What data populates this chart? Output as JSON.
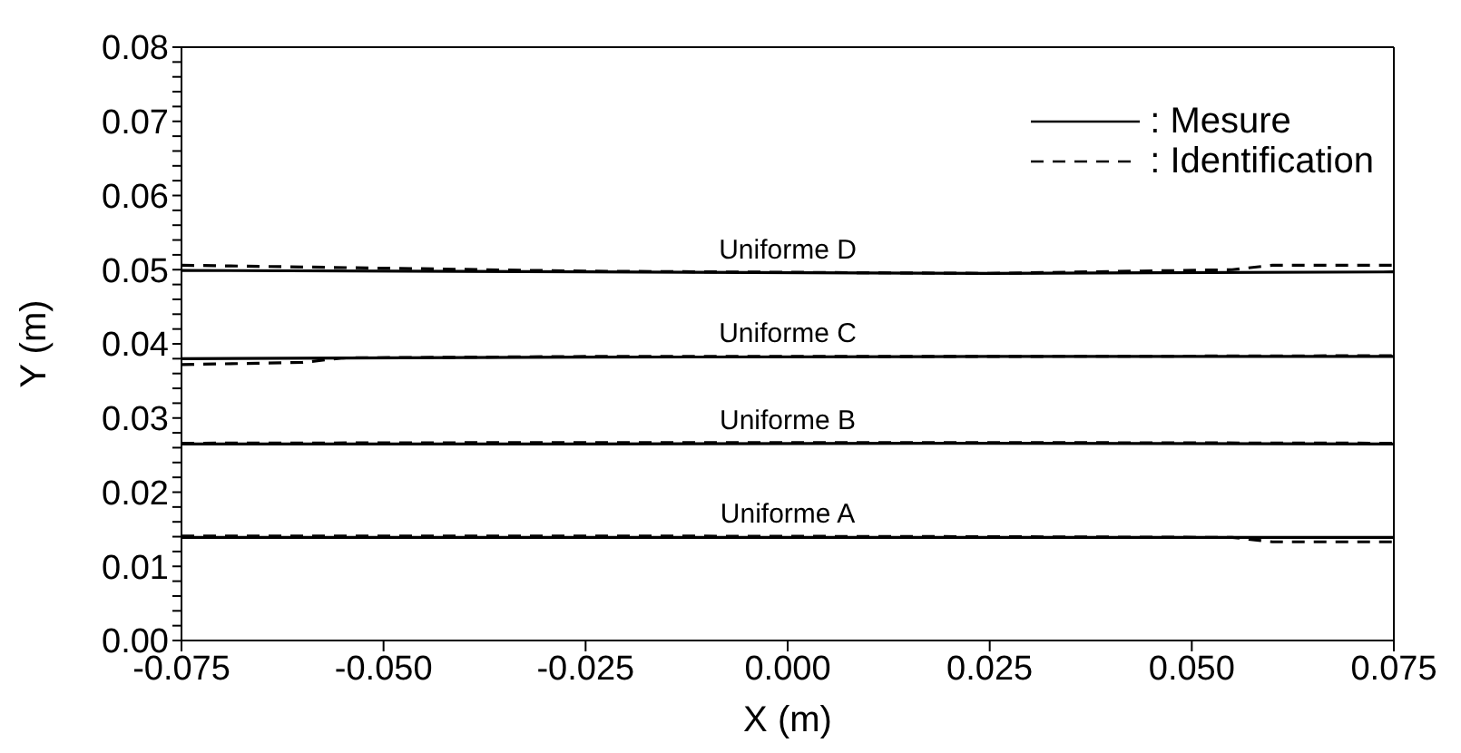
{
  "chart_data": {
    "type": "line",
    "xlabel": "X (m)",
    "ylabel": "Y (m)",
    "xlim": [
      -0.075,
      0.075
    ],
    "xticks": [
      {
        "value": -0.075,
        "label": "-0.075"
      },
      {
        "value": -0.05,
        "label": "-0.050"
      },
      {
        "value": -0.025,
        "label": "-0.025"
      },
      {
        "value": 0,
        "label": "0.000"
      },
      {
        "value": 0.025,
        "label": "0.025"
      },
      {
        "value": 0.05,
        "label": "0.050"
      },
      {
        "value": 0.075,
        "label": "0.075"
      }
    ],
    "ylim": [
      0,
      0.08
    ],
    "yticks": [
      {
        "value": 0,
        "label": "0.00"
      },
      {
        "value": 0.002,
        "label": null
      },
      {
        "value": 0.004,
        "label": null
      },
      {
        "value": 0.006,
        "label": null
      },
      {
        "value": 0.008,
        "label": null
      },
      {
        "value": 0.01,
        "label": "0.01"
      },
      {
        "value": 0.012,
        "label": null
      },
      {
        "value": 0.014,
        "label": null
      },
      {
        "value": 0.016,
        "label": null
      },
      {
        "value": 0.018,
        "label": null
      },
      {
        "value": 0.02,
        "label": "0.02"
      },
      {
        "value": 0.022,
        "label": null
      },
      {
        "value": 0.024,
        "label": null
      },
      {
        "value": 0.026,
        "label": null
      },
      {
        "value": 0.028,
        "label": null
      },
      {
        "value": 0.03,
        "label": "0.03"
      },
      {
        "value": 0.032,
        "label": null
      },
      {
        "value": 0.034,
        "label": null
      },
      {
        "value": 0.036,
        "label": null
      },
      {
        "value": 0.038,
        "label": null
      },
      {
        "value": 0.04,
        "label": "0.04"
      },
      {
        "value": 0.042,
        "label": null
      },
      {
        "value": 0.044,
        "label": null
      },
      {
        "value": 0.046,
        "label": null
      },
      {
        "value": 0.048,
        "label": null
      },
      {
        "value": 0.05,
        "label": "0.05"
      },
      {
        "value": 0.052,
        "label": null
      },
      {
        "value": 0.054,
        "label": null
      },
      {
        "value": 0.056,
        "label": null
      },
      {
        "value": 0.058,
        "label": null
      },
      {
        "value": 0.06,
        "label": "0.06"
      },
      {
        "value": 0.062,
        "label": null
      },
      {
        "value": 0.064,
        "label": null
      },
      {
        "value": 0.066,
        "label": null
      },
      {
        "value": 0.068,
        "label": null
      },
      {
        "value": 0.07,
        "label": "0.07"
      },
      {
        "value": 0.072,
        "label": null
      },
      {
        "value": 0.074,
        "label": null
      },
      {
        "value": 0.076,
        "label": null
      },
      {
        "value": 0.078,
        "label": null
      },
      {
        "value": 0.08,
        "label": "0.08"
      }
    ],
    "grid": false,
    "legend": "top right",
    "marker": "none",
    "series": [
      {
        "name": ": Mesure",
        "color": "#000000",
        "line_style": "solid",
        "x": [
          -0.075,
          -0.025,
          0.025,
          0.075
        ],
        "values": [
          0.0139,
          0.0139,
          0.0139,
          0.0139
        ]
      },
      {
        "name": ": Identification",
        "color": "#000000",
        "line_style": "dashed",
        "x": [
          -0.075,
          -0.025,
          0.025,
          0.055,
          0.06,
          0.075
        ],
        "values": [
          0.0141,
          0.0141,
          0.014,
          0.0139,
          0.0133,
          0.0133
        ]
      },
      {
        "color": "#000000",
        "line_style": "solid",
        "x": [
          -0.075,
          -0.025,
          0.025,
          0.075
        ],
        "values": [
          0.0265,
          0.0265,
          0.0266,
          0.0265
        ]
      },
      {
        "color": "#000000",
        "line_style": "dashed",
        "x": [
          -0.075,
          -0.025,
          0.025,
          0.075
        ],
        "values": [
          0.0266,
          0.0267,
          0.0267,
          0.0266
        ]
      },
      {
        "color": "#000000",
        "line_style": "solid",
        "x": [
          -0.075,
          -0.025,
          0.025,
          0.075
        ],
        "values": [
          0.038,
          0.0382,
          0.0383,
          0.0383
        ]
      },
      {
        "color": "#000000",
        "line_style": "dashed",
        "x": [
          -0.075,
          -0.06,
          -0.055,
          -0.025,
          0.025,
          0.075
        ],
        "values": [
          0.0372,
          0.0375,
          0.0381,
          0.0383,
          0.0383,
          0.0384
        ]
      },
      {
        "color": "#000000",
        "line_style": "solid",
        "x": [
          -0.075,
          -0.025,
          0.025,
          0.075
        ],
        "values": [
          0.0499,
          0.0497,
          0.0495,
          0.0497
        ]
      },
      {
        "color": "#000000",
        "line_style": "dashed",
        "x": [
          -0.075,
          -0.05,
          -0.025,
          0.025,
          0.055,
          0.06,
          0.075
        ],
        "values": [
          0.0506,
          0.0502,
          0.0498,
          0.0495,
          0.05,
          0.0506,
          0.0506
        ]
      }
    ],
    "annotations": [
      {
        "text": "Uniforme A",
        "y": 0.0139
      },
      {
        "text": "Uniforme B",
        "y": 0.0266
      },
      {
        "text": "Uniforme C",
        "y": 0.0383
      },
      {
        "text": "Uniforme D",
        "y": 0.0496
      }
    ]
  }
}
